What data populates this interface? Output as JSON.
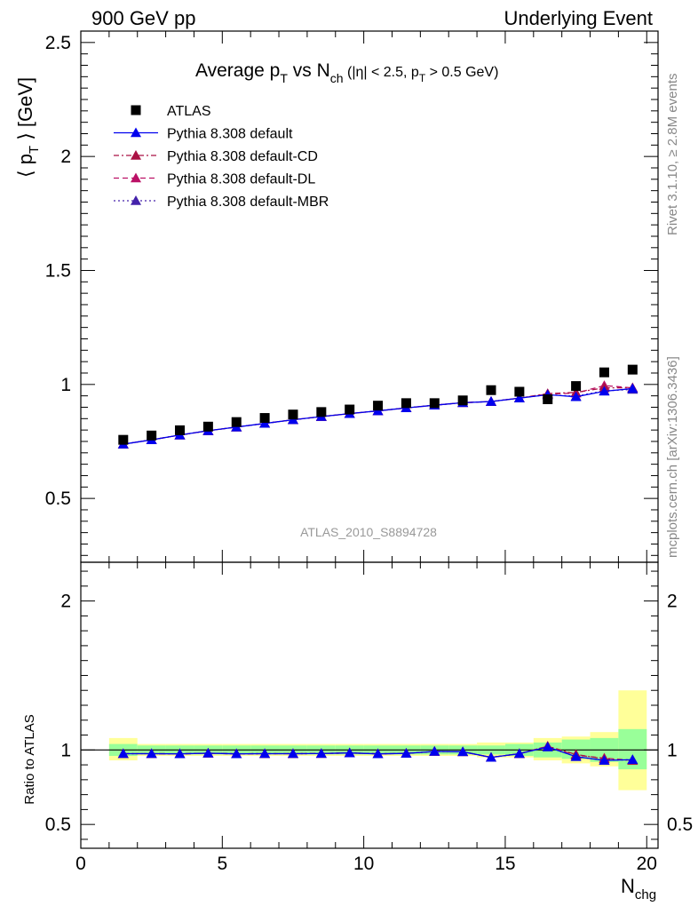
{
  "header": {
    "left": "900 GeV pp",
    "right": "Underlying Event"
  },
  "side_labels": {
    "rivet": "Rivet 3.1.10, ≥ 2.8M events",
    "mcplots": "mcplots.cern.ch [arXiv:1306.3436]"
  },
  "chart_data": [
    {
      "type": "scatter",
      "title": "Average p_T vs N_ch (|η| < 2.5, p_T > 0.5 GeV)",
      "watermark": "ATLAS_2010_S8894728",
      "xlabel": "N_chg",
      "ylabel": "⟨ p_T ⟩ [GeV]",
      "xlim": [
        0,
        20.4
      ],
      "ylim": [
        0.22,
        2.55
      ],
      "yticks": [
        0.5,
        1,
        1.5,
        2,
        2.5
      ],
      "xticks": [
        0,
        5,
        10,
        15,
        20
      ],
      "grid": false,
      "legend_position": "top-left",
      "x": [
        1.5,
        2.5,
        3.5,
        4.5,
        5.5,
        6.5,
        7.5,
        8.5,
        9.5,
        10.5,
        11.5,
        12.5,
        13.5,
        14.5,
        15.5,
        16.5,
        17.5,
        18.5,
        19.5
      ],
      "series": [
        {
          "name": "ATLAS",
          "color": "#000000",
          "style": "data",
          "values": [
            0.757,
            0.776,
            0.799,
            0.815,
            0.835,
            0.853,
            0.868,
            0.879,
            0.89,
            0.907,
            0.918,
            0.918,
            0.93,
            0.975,
            0.968,
            0.935,
            0.993,
            1.053,
            1.065
          ]
        },
        {
          "name": "Pythia 8.308 default",
          "color": "#0000ee",
          "style": "solid",
          "values": [
            0.738,
            0.757,
            0.778,
            0.797,
            0.813,
            0.829,
            0.845,
            0.859,
            0.872,
            0.884,
            0.897,
            0.909,
            0.92,
            0.925,
            0.94,
            0.955,
            0.946,
            0.97,
            0.982
          ]
        },
        {
          "name": "Pythia 8.308 default-CD",
          "color": "#aa1144",
          "style": "dashdot",
          "values": [
            0.738,
            0.757,
            0.778,
            0.797,
            0.813,
            0.829,
            0.845,
            0.859,
            0.872,
            0.884,
            0.897,
            0.909,
            0.92,
            0.925,
            0.94,
            0.96,
            0.965,
            0.985,
            0.985
          ]
        },
        {
          "name": "Pythia 8.308 default-DL",
          "color": "#bb1166",
          "style": "dashed",
          "values": [
            0.738,
            0.757,
            0.778,
            0.797,
            0.813,
            0.829,
            0.845,
            0.859,
            0.872,
            0.884,
            0.897,
            0.909,
            0.92,
            0.925,
            0.94,
            0.958,
            0.962,
            0.995,
            0.985
          ]
        },
        {
          "name": "Pythia 8.308 default-MBR",
          "color": "#4422aa",
          "style": "dotted",
          "values": [
            0.738,
            0.757,
            0.778,
            0.797,
            0.813,
            0.829,
            0.845,
            0.859,
            0.872,
            0.884,
            0.897,
            0.909,
            0.92,
            0.925,
            0.94,
            0.955,
            0.948,
            0.972,
            0.978
          ]
        }
      ]
    },
    {
      "type": "line",
      "ylabel": "Ratio to ATLAS",
      "xlabel": "N_chg",
      "xlim": [
        0,
        20.4
      ],
      "ylim": [
        0.34,
        2.26
      ],
      "yticks": [
        0.5,
        1,
        2
      ],
      "xticks": [
        0,
        5,
        10,
        15,
        20
      ],
      "bins": [
        [
          1,
          2
        ],
        [
          2,
          3
        ],
        [
          3,
          4
        ],
        [
          4,
          5
        ],
        [
          5,
          6
        ],
        [
          6,
          7
        ],
        [
          7,
          8
        ],
        [
          8,
          9
        ],
        [
          9,
          10
        ],
        [
          10,
          11
        ],
        [
          11,
          12
        ],
        [
          12,
          13
        ],
        [
          13,
          14
        ],
        [
          14,
          15
        ],
        [
          15,
          16
        ],
        [
          16,
          17
        ],
        [
          17,
          18
        ],
        [
          18,
          19
        ],
        [
          19,
          20
        ]
      ],
      "band_stat": [
        [
          0.96,
          1.04
        ],
        [
          0.97,
          1.03
        ],
        [
          0.97,
          1.03
        ],
        [
          0.97,
          1.03
        ],
        [
          0.97,
          1.03
        ],
        [
          0.97,
          1.03
        ],
        [
          0.97,
          1.03
        ],
        [
          0.97,
          1.03
        ],
        [
          0.97,
          1.03
        ],
        [
          0.97,
          1.03
        ],
        [
          0.97,
          1.03
        ],
        [
          0.97,
          1.03
        ],
        [
          0.97,
          1.03
        ],
        [
          0.97,
          1.03
        ],
        [
          0.96,
          1.04
        ],
        [
          0.95,
          1.05
        ],
        [
          0.94,
          1.07
        ],
        [
          0.92,
          1.08
        ],
        [
          0.87,
          1.14
        ]
      ],
      "band_total": [
        [
          0.93,
          1.08
        ],
        [
          0.96,
          1.04
        ],
        [
          0.96,
          1.04
        ],
        [
          0.96,
          1.04
        ],
        [
          0.96,
          1.04
        ],
        [
          0.96,
          1.04
        ],
        [
          0.96,
          1.04
        ],
        [
          0.96,
          1.04
        ],
        [
          0.96,
          1.04
        ],
        [
          0.96,
          1.04
        ],
        [
          0.96,
          1.04
        ],
        [
          0.96,
          1.04
        ],
        [
          0.96,
          1.04
        ],
        [
          0.95,
          1.05
        ],
        [
          0.95,
          1.05
        ],
        [
          0.93,
          1.08
        ],
        [
          0.91,
          1.09
        ],
        [
          0.89,
          1.12
        ],
        [
          0.73,
          1.4
        ]
      ],
      "band_colors": {
        "stat": "#99ff99",
        "total": "#ffff99"
      },
      "x": [
        1.5,
        2.5,
        3.5,
        4.5,
        5.5,
        6.5,
        7.5,
        8.5,
        9.5,
        10.5,
        11.5,
        12.5,
        13.5,
        14.5,
        15.5,
        16.5,
        17.5,
        18.5,
        19.5
      ],
      "series": [
        {
          "name": "Pythia 8.308 default",
          "color": "#0000ee",
          "style": "solid",
          "values": [
            0.975,
            0.975,
            0.974,
            0.978,
            0.974,
            0.975,
            0.975,
            0.976,
            0.98,
            0.974,
            0.977,
            0.99,
            0.988,
            0.95,
            0.975,
            1.02,
            0.955,
            0.93,
            0.935
          ]
        },
        {
          "name": "Pythia 8.308 default-CD",
          "color": "#aa1144",
          "style": "dashdot",
          "values": [
            0.975,
            0.975,
            0.974,
            0.978,
            0.974,
            0.975,
            0.975,
            0.976,
            0.98,
            0.974,
            0.977,
            0.99,
            0.988,
            0.95,
            0.975,
            1.025,
            0.97,
            0.94,
            0.93
          ]
        },
        {
          "name": "Pythia 8.308 default-DL",
          "color": "#bb1166",
          "style": "dashed",
          "values": [
            0.975,
            0.975,
            0.974,
            0.978,
            0.974,
            0.975,
            0.975,
            0.976,
            0.98,
            0.974,
            0.977,
            0.99,
            0.988,
            0.95,
            0.975,
            1.025,
            0.965,
            0.945,
            0.93
          ]
        },
        {
          "name": "Pythia 8.308 default-MBR",
          "color": "#4422aa",
          "style": "dotted",
          "values": [
            0.975,
            0.975,
            0.974,
            0.978,
            0.974,
            0.975,
            0.975,
            0.976,
            0.98,
            0.974,
            0.977,
            0.99,
            0.988,
            0.95,
            0.975,
            1.02,
            0.955,
            0.93,
            0.935
          ]
        }
      ]
    }
  ]
}
